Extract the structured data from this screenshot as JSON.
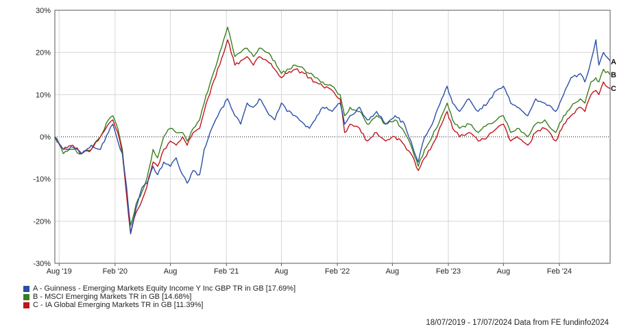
{
  "chart_data": {
    "type": "line",
    "x_ticks": [
      "Aug '19",
      "Feb '20",
      "Aug",
      "Feb '21",
      "Aug",
      "Feb '22",
      "Aug",
      "Feb '23",
      "Aug",
      "Feb '24"
    ],
    "y_ticks": [
      "30%",
      "20%",
      "10%",
      "0%",
      "-10%",
      "-20%",
      "-30%"
    ],
    "ylim": [
      -30,
      30
    ],
    "grid": true,
    "zero_line": "dotted",
    "x_range": [
      "2019-07-18",
      "2024-07-17"
    ],
    "legend_position": "bottom-left",
    "series": [
      {
        "name": "A - Guinness - Emerging Markets Equity Income Y Inc GBP TR in GB [17.69%]",
        "end_label": "A",
        "color": "#2a4ea6",
        "points": [
          [
            "2019-07-18",
            0
          ],
          [
            "2019-08-15",
            -3
          ],
          [
            "2019-09-15",
            -2.5
          ],
          [
            "2019-10-15",
            -4
          ],
          [
            "2019-11-15",
            -2
          ],
          [
            "2019-12-15",
            -3
          ],
          [
            "2020-01-10",
            1
          ],
          [
            "2020-01-25",
            3
          ],
          [
            "2020-02-10",
            -1
          ],
          [
            "2020-02-25",
            -4
          ],
          [
            "2020-03-10",
            -12
          ],
          [
            "2020-03-23",
            -23
          ],
          [
            "2020-04-10",
            -17
          ],
          [
            "2020-04-30",
            -12
          ],
          [
            "2020-05-15",
            -11
          ],
          [
            "2020-06-05",
            -7
          ],
          [
            "2020-06-20",
            -9
          ],
          [
            "2020-07-10",
            -6
          ],
          [
            "2020-08-01",
            -7
          ],
          [
            "2020-08-20",
            -5
          ],
          [
            "2020-09-10",
            -9
          ],
          [
            "2020-09-25",
            -11
          ],
          [
            "2020-10-15",
            -8
          ],
          [
            "2020-11-05",
            -9
          ],
          [
            "2020-11-20",
            -3
          ],
          [
            "2020-12-15",
            2
          ],
          [
            "2021-01-10",
            6
          ],
          [
            "2021-02-05",
            9
          ],
          [
            "2021-03-01",
            5
          ],
          [
            "2021-03-20",
            3
          ],
          [
            "2021-04-10",
            8
          ],
          [
            "2021-05-01",
            7
          ],
          [
            "2021-05-20",
            9
          ],
          [
            "2021-06-15",
            6
          ],
          [
            "2021-07-10",
            4
          ],
          [
            "2021-08-01",
            8
          ],
          [
            "2021-08-20",
            6
          ],
          [
            "2021-09-15",
            5
          ],
          [
            "2021-10-15",
            3
          ],
          [
            "2021-11-01",
            2
          ],
          [
            "2021-11-20",
            4
          ],
          [
            "2021-12-15",
            7
          ],
          [
            "2022-01-15",
            6
          ],
          [
            "2022-02-10",
            8
          ],
          [
            "2022-02-25",
            3
          ],
          [
            "2022-03-15",
            5
          ],
          [
            "2022-04-15",
            7
          ],
          [
            "2022-05-10",
            4
          ],
          [
            "2022-06-10",
            6
          ],
          [
            "2022-07-10",
            3
          ],
          [
            "2022-08-10",
            5
          ],
          [
            "2022-09-10",
            3
          ],
          [
            "2022-10-01",
            -1
          ],
          [
            "2022-10-25",
            -6
          ],
          [
            "2022-11-15",
            0
          ],
          [
            "2022-12-10",
            3
          ],
          [
            "2023-01-10",
            9
          ],
          [
            "2023-01-28",
            12
          ],
          [
            "2023-02-15",
            8
          ],
          [
            "2023-03-10",
            6
          ],
          [
            "2023-04-10",
            9
          ],
          [
            "2023-05-10",
            6
          ],
          [
            "2023-06-10",
            8
          ],
          [
            "2023-07-10",
            11
          ],
          [
            "2023-08-01",
            12
          ],
          [
            "2023-08-25",
            8
          ],
          [
            "2023-09-15",
            7
          ],
          [
            "2023-10-20",
            5
          ],
          [
            "2023-11-15",
            9
          ],
          [
            "2023-12-15",
            8
          ],
          [
            "2024-01-20",
            6
          ],
          [
            "2024-02-15",
            10
          ],
          [
            "2024-03-10",
            14
          ],
          [
            "2024-04-10",
            15
          ],
          [
            "2024-04-25",
            13
          ],
          [
            "2024-05-15",
            18
          ],
          [
            "2024-05-31",
            23
          ],
          [
            "2024-06-10",
            17
          ],
          [
            "2024-06-25",
            20
          ],
          [
            "2024-07-17",
            18
          ]
        ]
      },
      {
        "name": "B - MSCI Emerging Markets TR in GB [14.68%]",
        "end_label": "B",
        "color": "#3a7d1f",
        "points": [
          [
            "2019-07-18",
            0
          ],
          [
            "2019-08-15",
            -4
          ],
          [
            "2019-09-15",
            -3
          ],
          [
            "2019-10-15",
            -4
          ],
          [
            "2019-11-15",
            -3
          ],
          [
            "2019-12-15",
            0
          ],
          [
            "2020-01-10",
            4
          ],
          [
            "2020-01-25",
            5
          ],
          [
            "2020-02-10",
            2
          ],
          [
            "2020-02-25",
            -3
          ],
          [
            "2020-03-10",
            -13
          ],
          [
            "2020-03-23",
            -21
          ],
          [
            "2020-04-10",
            -16
          ],
          [
            "2020-04-30",
            -13
          ],
          [
            "2020-05-15",
            -10
          ],
          [
            "2020-06-05",
            -3
          ],
          [
            "2020-06-20",
            -5
          ],
          [
            "2020-07-10",
            0
          ],
          [
            "2020-08-01",
            2
          ],
          [
            "2020-08-20",
            1
          ],
          [
            "2020-09-10",
            1
          ],
          [
            "2020-09-25",
            -1
          ],
          [
            "2020-10-15",
            2
          ],
          [
            "2020-11-05",
            4
          ],
          [
            "2020-11-20",
            8
          ],
          [
            "2020-12-15",
            14
          ],
          [
            "2021-01-10",
            20
          ],
          [
            "2021-02-05",
            26
          ],
          [
            "2021-03-01",
            19
          ],
          [
            "2021-03-20",
            20
          ],
          [
            "2021-04-10",
            21
          ],
          [
            "2021-05-01",
            19
          ],
          [
            "2021-05-20",
            21
          ],
          [
            "2021-06-15",
            20
          ],
          [
            "2021-07-10",
            18
          ],
          [
            "2021-08-01",
            15
          ],
          [
            "2021-08-20",
            16
          ],
          [
            "2021-09-15",
            17
          ],
          [
            "2021-10-15",
            16
          ],
          [
            "2021-11-01",
            15
          ],
          [
            "2021-11-20",
            14
          ],
          [
            "2021-12-15",
            13
          ],
          [
            "2022-01-15",
            12
          ],
          [
            "2022-02-10",
            10
          ],
          [
            "2022-02-25",
            5
          ],
          [
            "2022-03-15",
            7
          ],
          [
            "2022-04-15",
            6
          ],
          [
            "2022-05-10",
            3
          ],
          [
            "2022-06-10",
            5
          ],
          [
            "2022-07-10",
            3
          ],
          [
            "2022-08-10",
            4
          ],
          [
            "2022-09-10",
            1
          ],
          [
            "2022-10-01",
            -2
          ],
          [
            "2022-10-25",
            -7
          ],
          [
            "2022-11-15",
            -3
          ],
          [
            "2022-12-10",
            0
          ],
          [
            "2023-01-10",
            5
          ],
          [
            "2023-01-28",
            8
          ],
          [
            "2023-02-15",
            4
          ],
          [
            "2023-03-10",
            2
          ],
          [
            "2023-04-10",
            3
          ],
          [
            "2023-05-10",
            1
          ],
          [
            "2023-06-10",
            3
          ],
          [
            "2023-07-10",
            4
          ],
          [
            "2023-08-01",
            5
          ],
          [
            "2023-08-25",
            1
          ],
          [
            "2023-09-15",
            2
          ],
          [
            "2023-10-20",
            0
          ],
          [
            "2023-11-15",
            3
          ],
          [
            "2023-12-15",
            4
          ],
          [
            "2024-01-20",
            1
          ],
          [
            "2024-02-15",
            5
          ],
          [
            "2024-03-10",
            7
          ],
          [
            "2024-04-10",
            9
          ],
          [
            "2024-04-25",
            8
          ],
          [
            "2024-05-15",
            13
          ],
          [
            "2024-05-31",
            14
          ],
          [
            "2024-06-10",
            13
          ],
          [
            "2024-06-25",
            16
          ],
          [
            "2024-07-17",
            14.7
          ]
        ]
      },
      {
        "name": "C - IA Global Emerging Markets TR in GB [11.39%]",
        "end_label": "C",
        "color": "#c0141b",
        "points": [
          [
            "2019-07-18",
            0
          ],
          [
            "2019-08-15",
            -3
          ],
          [
            "2019-09-15",
            -2
          ],
          [
            "2019-10-15",
            -4
          ],
          [
            "2019-11-15",
            -3
          ],
          [
            "2019-12-15",
            0
          ],
          [
            "2020-01-10",
            3
          ],
          [
            "2020-01-25",
            4
          ],
          [
            "2020-02-10",
            1
          ],
          [
            "2020-02-25",
            -4
          ],
          [
            "2020-03-10",
            -14
          ],
          [
            "2020-03-23",
            -23
          ],
          [
            "2020-04-10",
            -18
          ],
          [
            "2020-04-30",
            -15
          ],
          [
            "2020-05-15",
            -12
          ],
          [
            "2020-06-05",
            -6
          ],
          [
            "2020-06-20",
            -7
          ],
          [
            "2020-07-10",
            -3
          ],
          [
            "2020-08-01",
            -1
          ],
          [
            "2020-08-20",
            -2
          ],
          [
            "2020-09-10",
            0
          ],
          [
            "2020-09-25",
            -2
          ],
          [
            "2020-10-15",
            1
          ],
          [
            "2020-11-05",
            2
          ],
          [
            "2020-11-20",
            6
          ],
          [
            "2020-12-15",
            12
          ],
          [
            "2021-01-10",
            17
          ],
          [
            "2021-02-05",
            23
          ],
          [
            "2021-03-01",
            17
          ],
          [
            "2021-03-20",
            18
          ],
          [
            "2021-04-10",
            19
          ],
          [
            "2021-05-01",
            17
          ],
          [
            "2021-05-20",
            19
          ],
          [
            "2021-06-15",
            18
          ],
          [
            "2021-07-10",
            16
          ],
          [
            "2021-08-01",
            14
          ],
          [
            "2021-08-20",
            15
          ],
          [
            "2021-09-15",
            16
          ],
          [
            "2021-10-15",
            15
          ],
          [
            "2021-11-01",
            14
          ],
          [
            "2021-11-20",
            13
          ],
          [
            "2021-12-15",
            12
          ],
          [
            "2022-01-15",
            11
          ],
          [
            "2022-02-10",
            9
          ],
          [
            "2022-02-25",
            1
          ],
          [
            "2022-03-15",
            3
          ],
          [
            "2022-04-15",
            2
          ],
          [
            "2022-05-10",
            -1
          ],
          [
            "2022-06-10",
            1
          ],
          [
            "2022-07-10",
            -1
          ],
          [
            "2022-08-10",
            0
          ],
          [
            "2022-09-10",
            -2
          ],
          [
            "2022-10-01",
            -4
          ],
          [
            "2022-10-25",
            -8
          ],
          [
            "2022-11-15",
            -5
          ],
          [
            "2022-12-10",
            -2
          ],
          [
            "2023-01-10",
            3
          ],
          [
            "2023-01-28",
            6
          ],
          [
            "2023-02-15",
            2
          ],
          [
            "2023-03-10",
            0
          ],
          [
            "2023-04-10",
            1
          ],
          [
            "2023-05-10",
            -1
          ],
          [
            "2023-06-10",
            0
          ],
          [
            "2023-07-10",
            2
          ],
          [
            "2023-08-01",
            3
          ],
          [
            "2023-08-25",
            -1
          ],
          [
            "2023-09-15",
            0
          ],
          [
            "2023-10-20",
            -2
          ],
          [
            "2023-11-15",
            1
          ],
          [
            "2023-12-15",
            2
          ],
          [
            "2024-01-20",
            -1
          ],
          [
            "2024-02-15",
            3
          ],
          [
            "2024-03-10",
            5
          ],
          [
            "2024-04-10",
            7
          ],
          [
            "2024-04-25",
            6
          ],
          [
            "2024-05-15",
            10
          ],
          [
            "2024-05-31",
            11
          ],
          [
            "2024-06-10",
            10
          ],
          [
            "2024-06-25",
            13
          ],
          [
            "2024-07-17",
            11.4
          ]
        ]
      }
    ]
  },
  "footer": {
    "text": "18/07/2019 - 17/07/2024 Data from FE fundinfo2024"
  }
}
